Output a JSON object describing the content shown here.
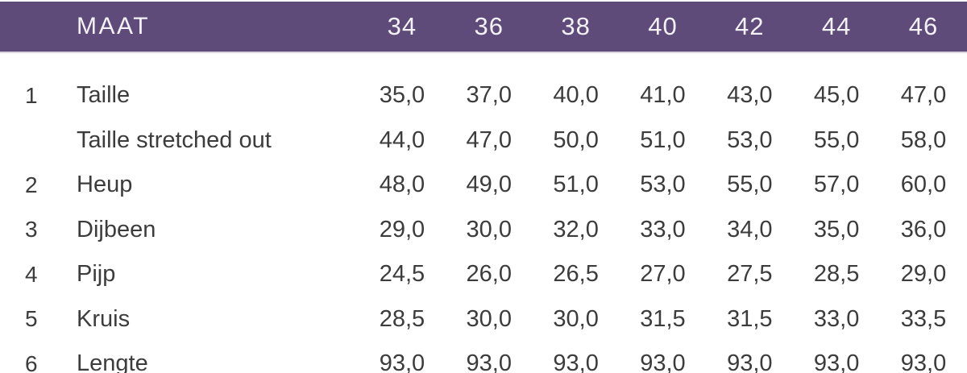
{
  "colors": {
    "header_bg": "#5e4b7a",
    "header_text": "#f4f1f6",
    "body_text": "#3c3c3c",
    "background": "#ffffff"
  },
  "header": {
    "size_label": "MAAT"
  },
  "chart_data": {
    "type": "table",
    "title": "MAAT",
    "columns": [
      "34",
      "36",
      "38",
      "40",
      "42",
      "44",
      "46"
    ],
    "rows": [
      {
        "num": "1",
        "label": "Taille",
        "values": [
          "35,0",
          "37,0",
          "40,0",
          "41,0",
          "43,0",
          "45,0",
          "47,0"
        ]
      },
      {
        "num": "",
        "label": "Taille stretched out",
        "values": [
          "44,0",
          "47,0",
          "50,0",
          "51,0",
          "53,0",
          "55,0",
          "58,0"
        ]
      },
      {
        "num": "2",
        "label": "Heup",
        "values": [
          "48,0",
          "49,0",
          "51,0",
          "53,0",
          "55,0",
          "57,0",
          "60,0"
        ]
      },
      {
        "num": "3",
        "label": "Dijbeen",
        "values": [
          "29,0",
          "30,0",
          "32,0",
          "33,0",
          "34,0",
          "35,0",
          "36,0"
        ]
      },
      {
        "num": "4",
        "label": "Pijp",
        "values": [
          "24,5",
          "26,0",
          "26,5",
          "27,0",
          "27,5",
          "28,5",
          "29,0"
        ]
      },
      {
        "num": "5",
        "label": "Kruis",
        "values": [
          "28,5",
          "30,0",
          "30,0",
          "31,5",
          "31,5",
          "33,0",
          "33,5"
        ]
      },
      {
        "num": "6",
        "label": "Lengte",
        "values": [
          "93,0",
          "93,0",
          "93,0",
          "93,0",
          "93,0",
          "93,0",
          "93,0"
        ]
      }
    ]
  }
}
